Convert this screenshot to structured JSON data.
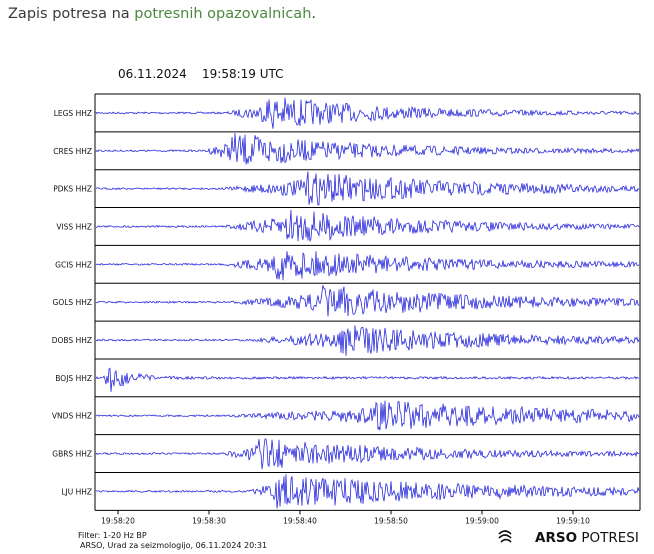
{
  "intro": {
    "prefix": "Zapis potresa na ",
    "link": "potresnih opazovalnicah",
    "suffix": "."
  },
  "header": {
    "date": "06.11.2024",
    "time": "19:58:19 UTC"
  },
  "time_axis": {
    "labels": [
      "19:58:20",
      "19:58:30",
      "19:58:40",
      "19:58:50",
      "19:59:00",
      "19:59:10"
    ]
  },
  "footer": {
    "line1": "Filter: 1-20 Hz BP",
    "line2": "ARSO, Urad za seizmologijo, 06.11.2024  20:31",
    "brand_bold": "ARSO",
    "brand_rest": " POTRESI"
  },
  "colors": {
    "trace": "#2b2bdd",
    "frame": "#000000",
    "link": "#4a8a3f"
  },
  "icons": {
    "brand": "arso-logo-icon"
  },
  "stations": [
    {
      "name": "LEGS HHZ",
      "onset_s": 13.5,
      "peak_s": 18,
      "amp": 1.0,
      "decay_s": 12
    },
    {
      "name": "CRES HHZ",
      "onset_s": 11,
      "peak_s": 14,
      "amp": 1.0,
      "decay_s": 14
    },
    {
      "name": "PDKS HHZ",
      "onset_s": 13,
      "peak_s": 22,
      "amp": 0.95,
      "decay_s": 18
    },
    {
      "name": "VISS HHZ",
      "onset_s": 13,
      "peak_s": 20,
      "amp": 1.0,
      "decay_s": 14
    },
    {
      "name": "GCIS HHZ",
      "onset_s": 13,
      "peak_s": 19,
      "amp": 0.9,
      "decay_s": 16
    },
    {
      "name": "GOLS HHZ",
      "onset_s": 14,
      "peak_s": 24,
      "amp": 0.95,
      "decay_s": 18
    },
    {
      "name": "DOBS HHZ",
      "onset_s": 16,
      "peak_s": 26,
      "amp": 0.9,
      "decay_s": 16
    },
    {
      "name": "BOJS HHZ",
      "onset_s": 0,
      "peak_s": 0.5,
      "amp": 0.95,
      "decay_s": 2
    },
    {
      "name": "VNDS HHZ",
      "onset_s": 14,
      "peak_s": 30,
      "amp": 0.85,
      "decay_s": 24
    },
    {
      "name": "GBRS HHZ",
      "onset_s": 13,
      "peak_s": 17,
      "amp": 0.9,
      "decay_s": 16
    },
    {
      "name": "LJU HHZ",
      "onset_s": 16,
      "peak_s": 19,
      "amp": 1.0,
      "decay_s": 22
    }
  ]
}
